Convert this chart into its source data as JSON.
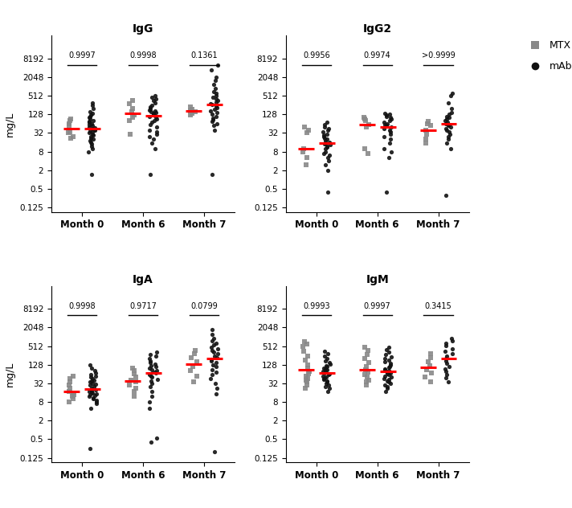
{
  "panels": [
    {
      "title": "IgG",
      "pvalues": [
        "0.9997",
        "0.9998",
        "0.1361"
      ],
      "mtx_data": [
        [
          22,
          25,
          32,
          35,
          55,
          65,
          80,
          90
        ],
        [
          30,
          80,
          100,
          120,
          160,
          200,
          280,
          350
        ],
        [
          120,
          140,
          155,
          170,
          190,
          220
        ]
      ],
      "mab_data": [
        [
          1.5,
          8,
          10,
          12,
          14,
          16,
          18,
          20,
          22,
          25,
          28,
          30,
          32,
          35,
          38,
          40,
          42,
          45,
          48,
          50,
          55,
          60,
          65,
          70,
          75,
          80,
          90,
          100,
          110,
          120,
          140,
          160,
          200,
          250,
          300
        ],
        [
          1.5,
          10,
          15,
          20,
          25,
          30,
          35,
          40,
          50,
          60,
          70,
          80,
          90,
          100,
          110,
          120,
          130,
          140,
          150,
          160,
          170,
          180,
          200,
          220,
          250,
          300,
          350,
          400,
          450,
          500
        ],
        [
          1.5,
          40,
          55,
          65,
          75,
          85,
          95,
          110,
          130,
          150,
          170,
          190,
          210,
          230,
          260,
          290,
          320,
          360,
          400,
          460,
          520,
          600,
          700,
          900,
          1200,
          1600,
          2000,
          3500,
          5000
        ]
      ]
    },
    {
      "title": "IgG2",
      "pvalues": [
        "0.9956",
        "0.9974",
        ">0.9999"
      ],
      "mtx_data": [
        [
          3,
          5,
          8,
          10,
          32,
          40,
          50
        ],
        [
          7,
          10,
          50,
          60,
          80,
          90,
          100
        ],
        [
          15,
          20,
          30,
          40,
          55,
          65,
          75
        ]
      ],
      "mab_data": [
        [
          0.4,
          2,
          3,
          4,
          5,
          6,
          7,
          8,
          10,
          11,
          12,
          13,
          14,
          15,
          16,
          18,
          20,
          22,
          25,
          28,
          30,
          35,
          40,
          45,
          50,
          60,
          70
        ],
        [
          0.4,
          5,
          8,
          10,
          15,
          20,
          25,
          30,
          35,
          40,
          45,
          50,
          55,
          60,
          65,
          70,
          80,
          90,
          100,
          110,
          120,
          130,
          140
        ],
        [
          0.3,
          10,
          15,
          20,
          25,
          30,
          35,
          40,
          45,
          50,
          55,
          60,
          65,
          70,
          80,
          90,
          100,
          110,
          130,
          150,
          200,
          300,
          500,
          600
        ]
      ]
    },
    {
      "title": "IgA",
      "pvalues": [
        "0.9998",
        "0.9717",
        "0.0799"
      ],
      "mtx_data": [
        [
          8,
          10,
          12,
          14,
          16,
          18,
          22,
          28,
          35,
          45,
          55
        ],
        [
          12,
          18,
          22,
          28,
          35,
          40,
          50,
          65,
          85,
          100
        ],
        [
          35,
          55,
          85,
          110,
          160,
          210,
          290,
          380
        ]
      ],
      "mab_data": [
        [
          0.25,
          5,
          7,
          8,
          9,
          10,
          11,
          12,
          13,
          14,
          15,
          16,
          17,
          18,
          19,
          20,
          22,
          25,
          28,
          30,
          32,
          35,
          38,
          40,
          45,
          50,
          55,
          60,
          70,
          85,
          100,
          130
        ],
        [
          0.4,
          0.55,
          5,
          8,
          12,
          18,
          25,
          32,
          38,
          44,
          50,
          56,
          62,
          68,
          75,
          82,
          90,
          98,
          110,
          120,
          135,
          150,
          170,
          200,
          240,
          280,
          320
        ],
        [
          0.2,
          15,
          22,
          32,
          45,
          60,
          75,
          90,
          110,
          130,
          150,
          170,
          195,
          220,
          250,
          285,
          320,
          370,
          420,
          480,
          560,
          650,
          750,
          900,
          1200,
          1800
        ]
      ]
    },
    {
      "title": "IgM",
      "pvalues": [
        "0.9993",
        "0.9997",
        "0.3415"
      ],
      "mtx_data": [
        [
          22,
          28,
          35,
          40,
          45,
          55,
          65,
          80,
          100,
          130,
          180,
          250,
          350,
          500,
          600,
          700
        ],
        [
          28,
          35,
          40,
          50,
          60,
          75,
          90,
          110,
          150,
          200,
          280,
          380,
          480
        ],
        [
          35,
          50,
          70,
          90,
          120,
          165,
          220,
          300
        ]
      ],
      "mab_data": [
        [
          18,
          22,
          25,
          28,
          32,
          35,
          38,
          42,
          45,
          48,
          52,
          56,
          60,
          65,
          70,
          76,
          82,
          88,
          95,
          102,
          110,
          120,
          135,
          150,
          170,
          200,
          240,
          290,
          350
        ],
        [
          18,
          22,
          25,
          28,
          32,
          35,
          38,
          42,
          46,
          50,
          55,
          60,
          65,
          70,
          76,
          82,
          88,
          95,
          105,
          115,
          128,
          142,
          158,
          178,
          200,
          230,
          270,
          320,
          390,
          480
        ],
        [
          35,
          48,
          62,
          78,
          95,
          115,
          140,
          168,
          200,
          240,
          290,
          355,
          430,
          520,
          630,
          760,
          920
        ]
      ]
    }
  ],
  "months": [
    "Month 0",
    "Month 6",
    "Month 7"
  ],
  "yticks": [
    0.125,
    0.5,
    2,
    8,
    32,
    128,
    512,
    2048,
    8192
  ],
  "ytick_labels": [
    "0.125",
    "0.5",
    "2",
    "8",
    "32",
    "128",
    "512",
    "2048",
    "8192"
  ],
  "ymin": 0.09,
  "ymax": 8192,
  "mtx_color": "#888888",
  "mab_color": "#111111",
  "median_color": "#FF0000",
  "background_color": "#ffffff",
  "ylabel": "mg/L",
  "legend_labels": [
    "MTX",
    "mAb"
  ]
}
